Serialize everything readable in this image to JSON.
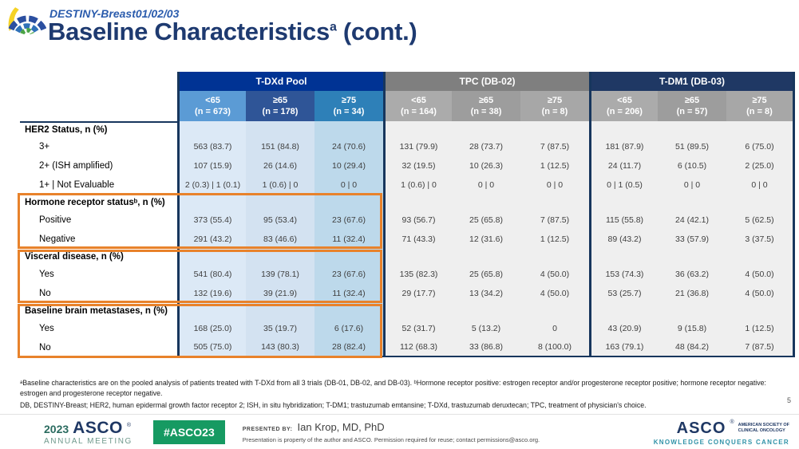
{
  "slide": {
    "trial_name": "DESTINY-Breast01/02/03",
    "title_main": "Baseline Characteristics",
    "title_sup": "a",
    "title_suffix": " (cont.)",
    "page_number": "5"
  },
  "table": {
    "groups": [
      {
        "label": "T-DXd Pool",
        "cols": [
          {
            "age": "<65",
            "n": "(n = 673)"
          },
          {
            "age": "≥65",
            "n": "(n = 178)"
          },
          {
            "age": "≥75",
            "n": "(n = 34)"
          }
        ]
      },
      {
        "label": "TPC (DB-02)",
        "cols": [
          {
            "age": "<65",
            "n": "(n = 164)"
          },
          {
            "age": "≥65",
            "n": "(n = 38)"
          },
          {
            "age": "≥75",
            "n": "(n = 8)"
          }
        ]
      },
      {
        "label": "T-DM1 (DB-03)",
        "cols": [
          {
            "age": "<65",
            "n": "(n = 206)"
          },
          {
            "age": "≥65",
            "n": "(n = 57)"
          },
          {
            "age": "≥75",
            "n": "(n = 8)"
          }
        ]
      }
    ],
    "rows": [
      {
        "type": "category",
        "label": "HER2 Status, n (%)",
        "cells": [
          "",
          "",
          "",
          "",
          "",
          "",
          "",
          "",
          ""
        ]
      },
      {
        "type": "data",
        "label": "3+",
        "cells": [
          "563 (83.7)",
          "151 (84.8)",
          "24 (70.6)",
          "131 (79.9)",
          "28 (73.7)",
          "7 (87.5)",
          "181 (87.9)",
          "51 (89.5)",
          "6 (75.0)"
        ]
      },
      {
        "type": "data",
        "label": "2+ (ISH amplified)",
        "cells": [
          "107 (15.9)",
          "26 (14.6)",
          "10 (29.4)",
          "32 (19.5)",
          "10 (26.3)",
          "1 (12.5)",
          "24 (11.7)",
          "6 (10.5)",
          "2 (25.0)"
        ]
      },
      {
        "type": "data",
        "label": "1+ | Not Evaluable",
        "cells": [
          "2 (0.3) | 1 (0.1)",
          "1 (0.6) | 0",
          "0 | 0",
          "1 (0.6) | 0",
          "0 | 0",
          "0 | 0",
          "0 | 1 (0.5)",
          "0 | 0",
          "0 | 0"
        ]
      },
      {
        "type": "category",
        "label": "Hormone receptor statusᵇ, n (%)",
        "cells": [
          "",
          "",
          "",
          "",
          "",
          "",
          "",
          "",
          ""
        ]
      },
      {
        "type": "data",
        "label": "Positive",
        "cells": [
          "373 (55.4)",
          "95 (53.4)",
          "23 (67.6)",
          "93 (56.7)",
          "25 (65.8)",
          "7 (87.5)",
          "115 (55.8)",
          "24 (42.1)",
          "5 (62.5)"
        ]
      },
      {
        "type": "data",
        "label": "Negative",
        "cells": [
          "291 (43.2)",
          "83 (46.6)",
          "11 (32.4)",
          "71 (43.3)",
          "12 (31.6)",
          "1 (12.5)",
          "89 (43.2)",
          "33 (57.9)",
          "3 (37.5)"
        ]
      },
      {
        "type": "category",
        "label": "Visceral disease, n (%)",
        "cells": [
          "",
          "",
          "",
          "",
          "",
          "",
          "",
          "",
          ""
        ]
      },
      {
        "type": "data",
        "label": "Yes",
        "cells": [
          "541 (80.4)",
          "139 (78.1)",
          "23 (67.6)",
          "135 (82.3)",
          "25 (65.8)",
          "4 (50.0)",
          "153 (74.3)",
          "36 (63.2)",
          "4 (50.0)"
        ]
      },
      {
        "type": "data",
        "label": "No",
        "cells": [
          "132 (19.6)",
          "39 (21.9)",
          "11 (32.4)",
          "29 (17.7)",
          "13 (34.2)",
          "4 (50.0)",
          "53 (25.7)",
          "21 (36.8)",
          "4 (50.0)"
        ]
      },
      {
        "type": "category",
        "label": "Baseline brain metastases, n (%)",
        "cells": [
          "",
          "",
          "",
          "",
          "",
          "",
          "",
          "",
          ""
        ]
      },
      {
        "type": "data",
        "label": "Yes",
        "cells": [
          "168 (25.0)",
          "35 (19.7)",
          "6 (17.6)",
          "52 (31.7)",
          "5 (13.2)",
          "0",
          "43 (20.9)",
          "9 (15.8)",
          "1 (12.5)"
        ]
      },
      {
        "type": "data",
        "label": "No",
        "cells": [
          "505 (75.0)",
          "143 (80.3)",
          "28 (82.4)",
          "112 (68.3)",
          "33 (86.8)",
          "8 (100.0)",
          "163 (79.1)",
          "48 (84.2)",
          "7 (87.5)"
        ]
      }
    ]
  },
  "footnotes": {
    "line1": "ᵃBaseline characteristics are on the pooled analysis of patients treated with T-DXd from all 3 trials (DB-01, DB-02, and DB-03). ᵇHormone receptor positive: estrogen receptor and/or progesterone receptor positive; hormone receptor negative: estrogen and progesterone receptor negative.",
    "line2": "DB, DESTINY-Breast; HER2, human epidermal growth factor receptor 2; ISH, in situ hybridization; T-DM1; trastuzumab emtansine; T-DXd, trastuzumab deruxtecan; TPC, treatment of physician's choice."
  },
  "footer": {
    "year": "2023",
    "org": "ASCO",
    "org_reg": "®",
    "meeting": "ANNUAL MEETING",
    "hashtag": "#ASCO23",
    "presented_by_label": "PRESENTED BY:",
    "presenter": "Ian Krop, MD, PhD",
    "disclaimer": "Presentation is property of the author and ASCO. Permission required for reuse; contact permissions@asco.org.",
    "asco_logo_text": "ASCO",
    "asco_logo_reg": "®",
    "asco_sub1": "AMERICAN SOCIETY OF",
    "asco_sub2": "CLINICAL ONCOLOGY",
    "asco_tagline": "KNOWLEDGE CONQUERS CANCER"
  },
  "colors": {
    "title_navy": "#1e3a70",
    "tdxd_header": "#003394",
    "tpc_header": "#7f7f7f",
    "tdm1_header": "#1F3864",
    "group_border_navy": "#17365D",
    "highlight_orange": "#E8822B",
    "asco_green": "#169A62",
    "tagline_teal": "#3193A8"
  }
}
